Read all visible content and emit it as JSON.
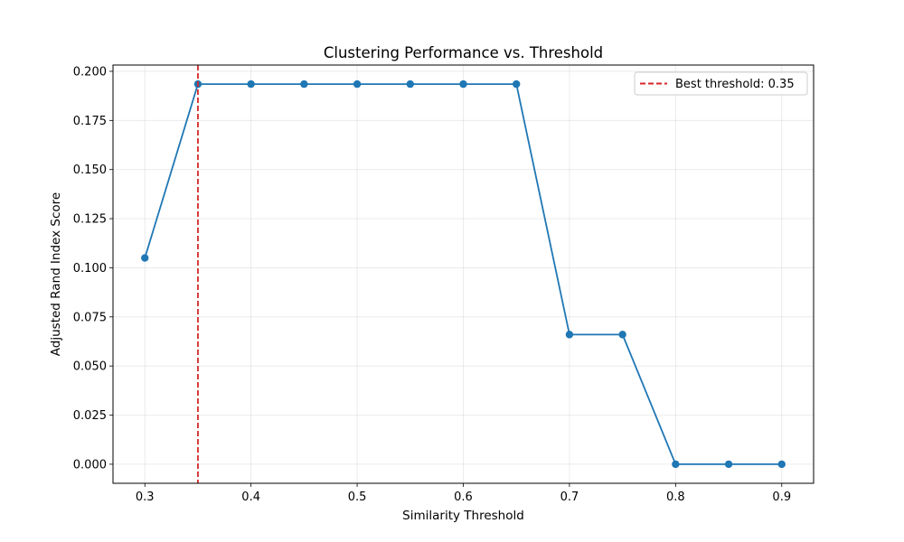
{
  "chart_data": {
    "type": "line",
    "title": "Clustering Performance vs. Threshold",
    "xlabel": "Similarity Threshold",
    "ylabel": "Adjusted Rand Index Score",
    "xlim": [
      0.27,
      0.93
    ],
    "ylim": [
      -0.0097,
      0.2032
    ],
    "grid": true,
    "legend_position": "top-right",
    "xticks": [
      0.3,
      0.4,
      0.5,
      0.6,
      0.7,
      0.8,
      0.9
    ],
    "xtick_labels": [
      "0.3",
      "0.4",
      "0.5",
      "0.6",
      "0.7",
      "0.8",
      "0.9"
    ],
    "yticks": [
      0.0,
      0.025,
      0.05,
      0.075,
      0.1,
      0.125,
      0.15,
      0.175,
      0.2
    ],
    "ytick_labels": [
      "0.000",
      "0.025",
      "0.050",
      "0.075",
      "0.100",
      "0.125",
      "0.150",
      "0.175",
      "0.200"
    ],
    "series": [
      {
        "color": "#1f77b4",
        "marker": "circle",
        "x": [
          0.3,
          0.35,
          0.4,
          0.45,
          0.5,
          0.55,
          0.6,
          0.65,
          0.7,
          0.75,
          0.8,
          0.85,
          0.9
        ],
        "y": [
          0.105,
          0.1935,
          0.1935,
          0.1935,
          0.1935,
          0.1935,
          0.1935,
          0.1935,
          0.066,
          0.066,
          0.0,
          0.0,
          0.0
        ]
      }
    ],
    "vline": {
      "x": 0.35,
      "color": "#d62728",
      "style": "dashed",
      "label": "Best threshold: 0.35"
    }
  }
}
